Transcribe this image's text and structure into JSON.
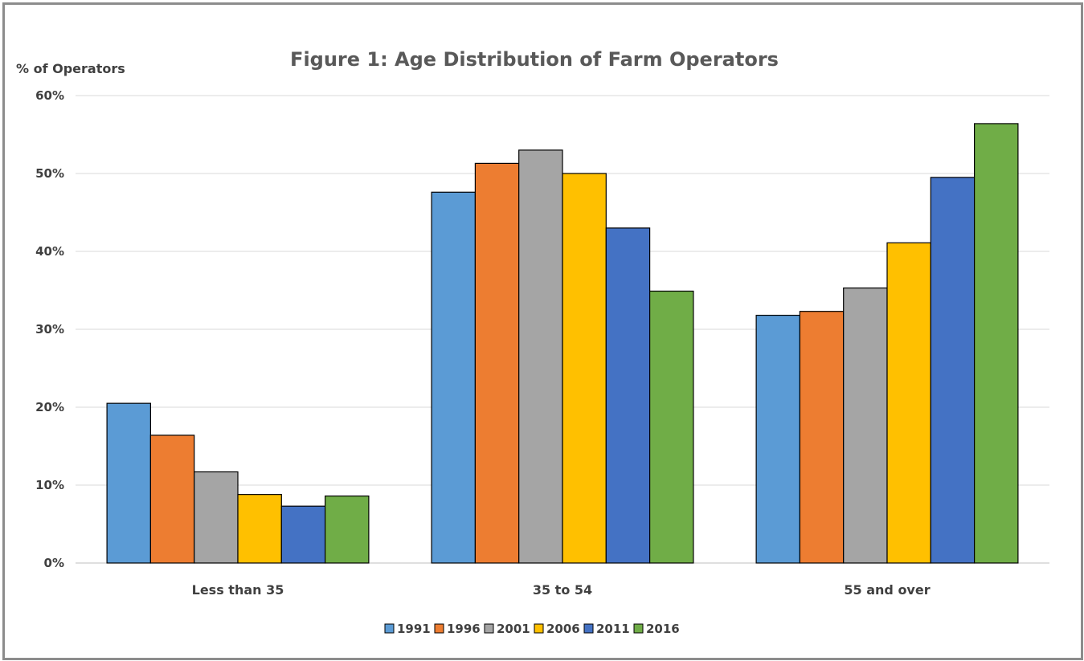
{
  "chart_data": {
    "type": "bar",
    "title": "Figure 1: Age Distribution of Farm Operators",
    "ylabel": "% of Operators",
    "xlabel": "",
    "ylim": [
      0,
      60
    ],
    "yticks": [
      0,
      10,
      20,
      30,
      40,
      50,
      60
    ],
    "ytick_labels": [
      "0%",
      "10%",
      "20%",
      "30%",
      "40%",
      "50%",
      "60%"
    ],
    "categories": [
      "Less than 35",
      "35 to 54",
      "55 and over"
    ],
    "series": [
      {
        "name": "1991",
        "color": "#5b9bd5",
        "values": [
          20.5,
          47.6,
          31.8
        ]
      },
      {
        "name": "1996",
        "color": "#ed7d31",
        "values": [
          16.4,
          51.3,
          32.3
        ]
      },
      {
        "name": "2001",
        "color": "#a5a5a5",
        "values": [
          11.7,
          53.0,
          35.3
        ]
      },
      {
        "name": "2006",
        "color": "#ffc000",
        "values": [
          8.8,
          50.0,
          41.1
        ]
      },
      {
        "name": "2011",
        "color": "#4472c4",
        "values": [
          7.3,
          43.0,
          49.5
        ]
      },
      {
        "name": "2016",
        "color": "#70ad47",
        "values": [
          8.6,
          34.9,
          56.4
        ]
      }
    ],
    "grid": true,
    "legend_position": "bottom"
  }
}
